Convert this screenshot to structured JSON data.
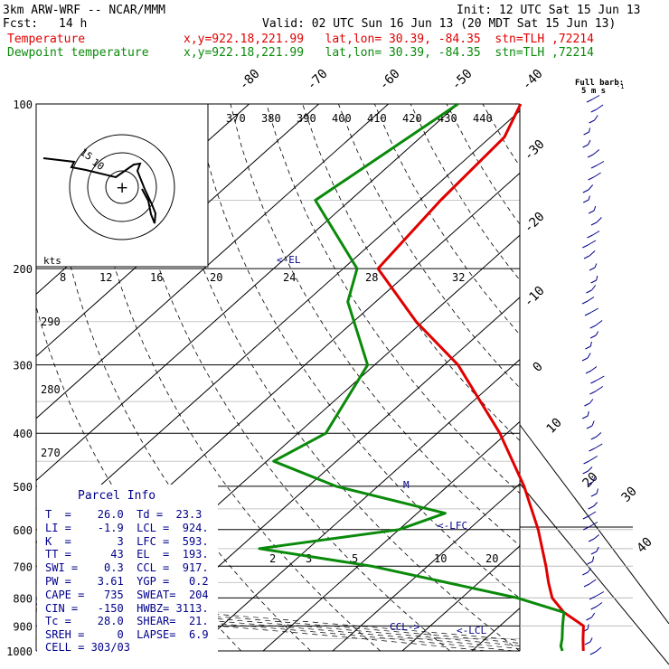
{
  "header": {
    "model": "3km ARW-WRF -- NCAR/MMM",
    "init": "Init: 12 UTC Sat 15 Jun 13",
    "fcst_label": "Fcst:",
    "fcst_value": "14 h",
    "valid": "Valid: 02 UTC Sun 16 Jun 13 (20 MDT Sat 15 Jun 13)"
  },
  "legend": [
    {
      "name": "Temperature",
      "info": "x,y=922.18,221.99   lat,lon= 30.39, -84.35  stn=TLH ,72214",
      "color": "#e00000"
    },
    {
      "name": "Dewpoint temperature",
      "info": "x,y=922.18,221.99   lat,lon= 30.39, -84.35  stn=TLH ,72214",
      "color": "#0a8a0a"
    }
  ],
  "barb_key": {
    "line1": "Full barb:",
    "line2": "5 m s",
    "exp": "-1"
  },
  "hodograph": {
    "unit": "kts",
    "rings": [
      "15",
      "10"
    ],
    "center_marker": "+"
  },
  "chart_data": {
    "type": "line",
    "title": "",
    "ylabel": "",
    "yscale": "log",
    "ylim": [
      1000,
      100
    ],
    "pressure_levels": [
      100,
      200,
      300,
      400,
      500,
      600,
      700,
      800,
      900,
      1000
    ],
    "isotherm_labels": [
      "-80",
      "-70",
      "-60",
      "-50",
      "-40",
      "-30",
      "-20",
      "-10",
      "0",
      "10",
      "20",
      "30",
      "40"
    ],
    "theta_e_labels": [
      "370",
      "380",
      "390",
      "400",
      "410",
      "420",
      "430",
      "440"
    ],
    "mixing_ratio_labels": [
      "8",
      "12",
      "16",
      "20",
      "24",
      "28",
      "32"
    ],
    "theta_labels": [
      "290",
      "280",
      "270"
    ],
    "low_mixing_labels": [
      "2",
      "3",
      "5",
      "10",
      "20"
    ],
    "series": [
      {
        "name": "Temperature",
        "color": "#e00000",
        "points": [
          [
            100,
            -71
          ],
          [
            115,
            -68
          ],
          [
            150,
            -67
          ],
          [
            200,
            -65
          ],
          [
            250,
            -51
          ],
          [
            300,
            -38
          ],
          [
            400,
            -21
          ],
          [
            500,
            -9
          ],
          [
            600,
            0
          ],
          [
            700,
            7
          ],
          [
            750,
            10
          ],
          [
            800,
            13
          ],
          [
            850,
            17
          ],
          [
            900,
            22
          ],
          [
            950,
            24
          ],
          [
            1000,
            26
          ]
        ]
      },
      {
        "name": "Dewpoint temperature",
        "color": "#0a8a0a",
        "points": [
          [
            100,
            -80
          ],
          [
            150,
            -85
          ],
          [
            200,
            -68
          ],
          [
            230,
            -64
          ],
          [
            300,
            -51
          ],
          [
            400,
            -46
          ],
          [
            450,
            -49
          ],
          [
            500,
            -36
          ],
          [
            560,
            -16
          ],
          [
            600,
            -20
          ],
          [
            650,
            -37
          ],
          [
            700,
            -18
          ],
          [
            800,
            8
          ],
          [
            850,
            17
          ],
          [
            900,
            19
          ],
          [
            950,
            21
          ],
          [
            980,
            22
          ],
          [
            1000,
            23
          ]
        ]
      }
    ],
    "annotations": [
      "<-EL",
      "<-LFC",
      "<-LCL",
      "CCL->",
      "M"
    ],
    "wind_barbs_present": true
  },
  "parcel_info": {
    "title": "Parcel Info",
    "rows": [
      "T  =    26.0  Td =  23.3",
      "LI =    -1.9  LCL =  924.",
      "K  =       3  LFC =  593.",
      "TT =      43  EL  =  193.",
      "SWI =    0.3  CCL =  917.",
      "PW =    3.61  YGP =   0.2",
      "CAPE =   735  SWEAT=  204",
      "CIN =   -150  HWBZ= 3113.",
      "Tc =    28.0  SHEAR=  21.",
      "SREH =     0  LAPSE=  6.9",
      "CELL = 303/03"
    ]
  }
}
